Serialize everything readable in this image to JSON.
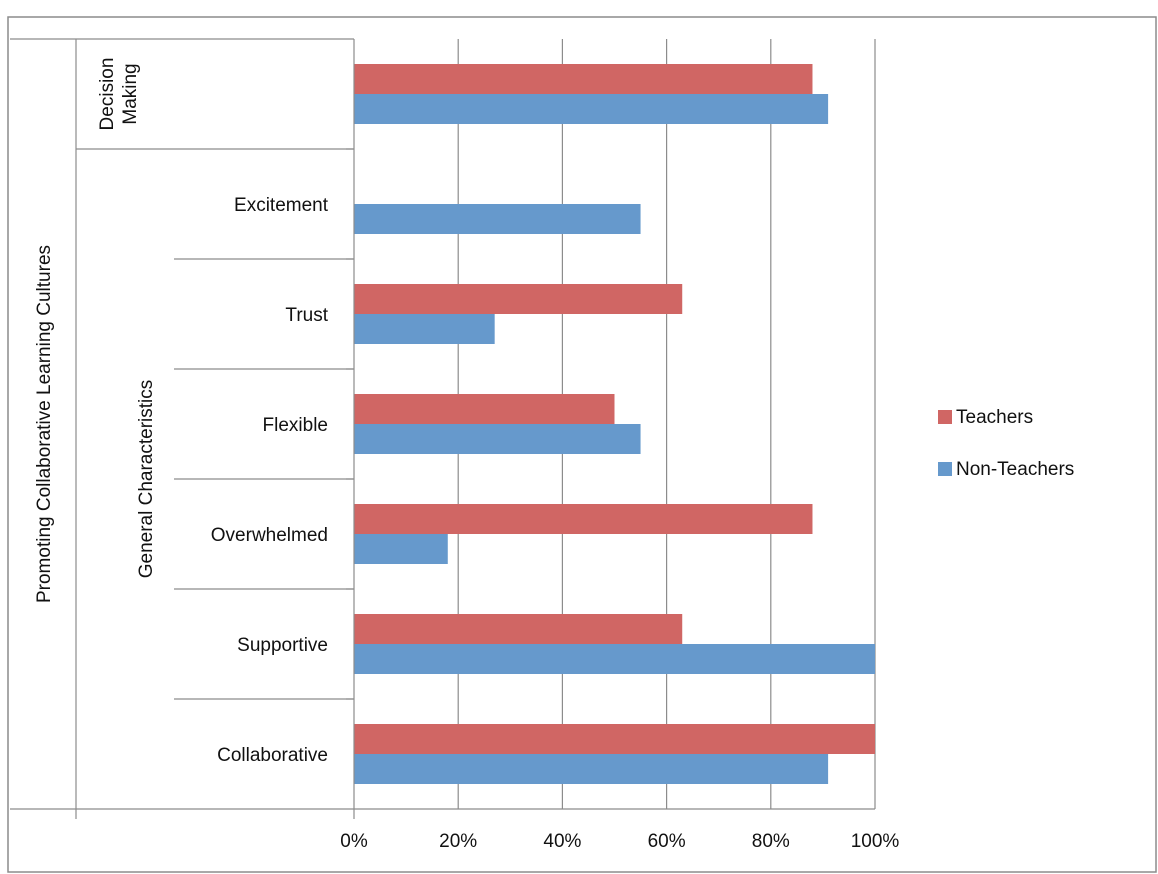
{
  "chart_data": {
    "type": "bar",
    "orientation": "horizontal",
    "title": "",
    "categories": [
      "Collaborative",
      "Supportive",
      "Overwhelmed",
      "Flexible",
      "Trust",
      "Excitement",
      "Decision Making"
    ],
    "category_label_lines": [
      [
        "Collaborative"
      ],
      [
        "Supportive"
      ],
      [
        "Overwhelmed"
      ],
      [
        "Flexible"
      ],
      [
        "Trust"
      ],
      [
        "Excitement"
      ],
      [
        "Decision",
        "Making"
      ]
    ],
    "groups": [
      {
        "label": "General Characteristics",
        "categories": [
          "Collaborative",
          "Supportive",
          "Overwhelmed",
          "Flexible",
          "Trust",
          "Excitement"
        ]
      },
      {
        "label": "Decision Making",
        "categories": [
          "Decision Making"
        ]
      }
    ],
    "outer_group_label": "Promoting Collaborative Learning Cultures",
    "series": [
      {
        "name": "Teachers",
        "color": "#D06664",
        "values": [
          1.0,
          0.63,
          0.88,
          0.5,
          0.63,
          0.0,
          0.88
        ]
      },
      {
        "name": "Non-Teachers",
        "color": "#6699CC",
        "values": [
          0.91,
          1.0,
          0.18,
          0.55,
          0.27,
          0.55,
          0.91
        ]
      }
    ],
    "xlim": [
      0,
      1
    ],
    "xticks": [
      "0%",
      "20%",
      "40%",
      "60%",
      "80%",
      "100%"
    ],
    "grid": true,
    "legend_position": "right"
  }
}
